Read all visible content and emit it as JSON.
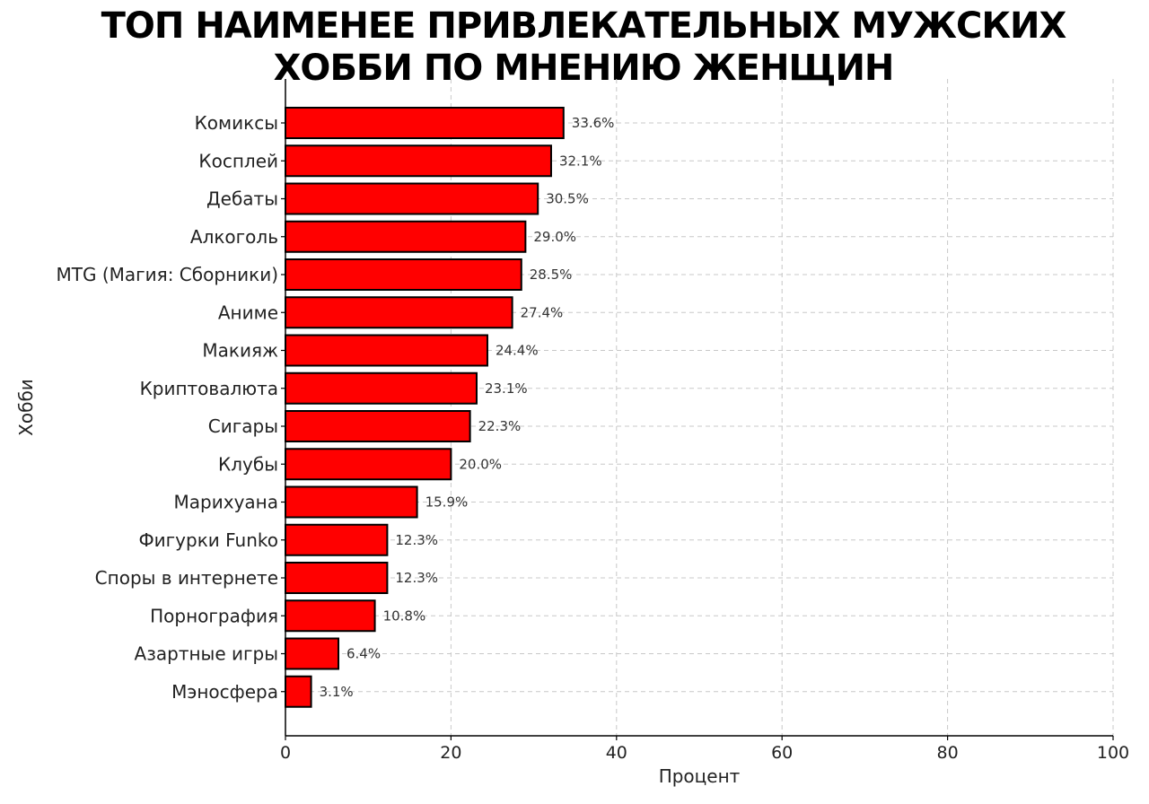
{
  "chart_data": {
    "type": "bar",
    "orientation": "horizontal",
    "title_lines": [
      "ТОП НАИМЕНЕЕ ПРИВЛЕКАТЕЛЬНЫХ МУЖСКИХ",
      "ХОББИ ПО МНЕНИЮ ЖЕНЩИН"
    ],
    "xlabel": "Процент",
    "ylabel": "Хобби",
    "xlim": [
      0,
      100
    ],
    "xticks": [
      0,
      20,
      40,
      60,
      80,
      100
    ],
    "grid": true,
    "value_suffix": "%",
    "bar_color": "#ff0000",
    "bar_edge_color": "#000000",
    "categories": [
      "Комиксы",
      "Косплей",
      "Дебаты",
      "Алкоголь",
      "MTG (Магия: Сборники)",
      "Аниме",
      "Макияж",
      "Криптовалюта",
      "Сигары",
      "Клубы",
      "Марихуана",
      "Фигурки Funko",
      "Споры в интернете",
      "Порнография",
      "Азартные игры",
      "Мэносфера"
    ],
    "values": [
      33.6,
      32.1,
      30.5,
      29.0,
      28.5,
      27.4,
      24.4,
      23.1,
      22.3,
      20.0,
      15.9,
      12.3,
      12.3,
      10.8,
      6.4,
      3.1
    ]
  }
}
